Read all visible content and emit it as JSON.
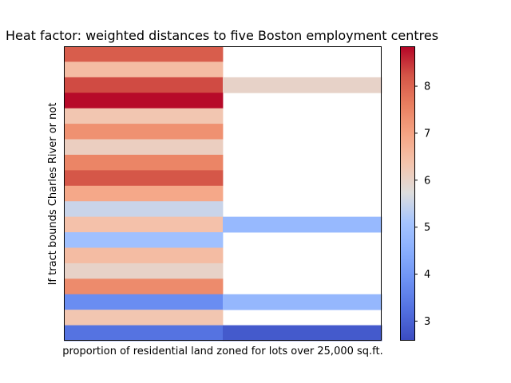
{
  "chart_data": {
    "type": "heatmap",
    "title": "Heat factor: weighted distances to five Boston employment centres",
    "xlabel": "proportion of residential land zoned for lots over 25,000 sq.ft.",
    "ylabel": "If tract bounds Charles River or not",
    "x_tick_labels": [],
    "y_tick_labels": [],
    "colormap": "coolwarm",
    "colorbar": {
      "vmin": 2.6,
      "vmax": 8.85,
      "ticks": [
        3,
        4,
        5,
        6,
        7,
        8
      ],
      "tick_labels": [
        "3",
        "4",
        "5",
        "6",
        "7",
        "8"
      ]
    },
    "values": [
      [
        8.1,
        null
      ],
      [
        6.5,
        null
      ],
      [
        8.3,
        6.0
      ],
      [
        8.8,
        null
      ],
      [
        6.3,
        null
      ],
      [
        7.3,
        null
      ],
      [
        6.1,
        null
      ],
      [
        7.5,
        null
      ],
      [
        8.2,
        null
      ],
      [
        6.9,
        null
      ],
      [
        5.5,
        null
      ],
      [
        6.4,
        4.8
      ],
      [
        5.0,
        null
      ],
      [
        6.5,
        null
      ],
      [
        6.0,
        null
      ],
      [
        7.4,
        null
      ],
      [
        3.8,
        4.75
      ],
      [
        6.3,
        null
      ],
      [
        3.3,
        2.85
      ]
    ]
  }
}
